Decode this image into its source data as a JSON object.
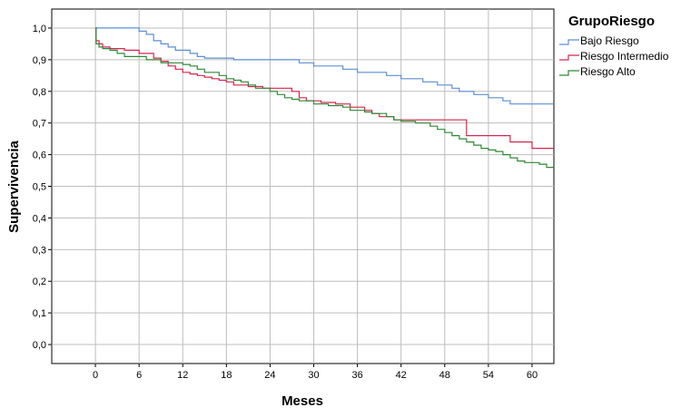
{
  "chart_data": {
    "type": "line",
    "xlabel": "Meses",
    "ylabel": "Supervivencia",
    "xlim": [
      -6,
      63
    ],
    "ylim": [
      -0.06,
      1.06
    ],
    "x_ticks": [
      0,
      6,
      12,
      18,
      24,
      30,
      36,
      42,
      48,
      54,
      60
    ],
    "x_tick_labels": [
      "0",
      "6",
      "12",
      "18",
      "24",
      "30",
      "36",
      "42",
      "48",
      "54",
      "60"
    ],
    "y_ticks": [
      0,
      0.1,
      0.2,
      0.3,
      0.4,
      0.5,
      0.6,
      0.7,
      0.8,
      0.9,
      1.0
    ],
    "y_tick_labels": [
      "0,0",
      "0,1",
      "0,2",
      "0,3",
      "0,4",
      "0,5",
      "0,6",
      "0,7",
      "0,8",
      "0,9",
      "1,0"
    ],
    "grid": true,
    "step": true,
    "legend": {
      "title": "GrupoRiesgo",
      "position": "top-right"
    },
    "series": [
      {
        "name": "Bajo Riesgo",
        "color": "#5b8fd6",
        "points": [
          [
            0,
            1.0
          ],
          [
            6,
            0.99
          ],
          [
            7,
            0.98
          ],
          [
            8,
            0.96
          ],
          [
            9,
            0.95
          ],
          [
            10,
            0.94
          ],
          [
            11,
            0.93
          ],
          [
            13,
            0.92
          ],
          [
            14,
            0.91
          ],
          [
            15,
            0.905
          ],
          [
            19,
            0.9
          ],
          [
            28,
            0.89
          ],
          [
            30,
            0.88
          ],
          [
            34,
            0.87
          ],
          [
            36,
            0.86
          ],
          [
            40,
            0.85
          ],
          [
            42,
            0.84
          ],
          [
            45,
            0.83
          ],
          [
            47,
            0.82
          ],
          [
            49,
            0.81
          ],
          [
            50,
            0.8
          ],
          [
            52,
            0.79
          ],
          [
            54,
            0.78
          ],
          [
            56,
            0.77
          ],
          [
            57,
            0.76
          ],
          [
            63,
            0.76
          ]
        ]
      },
      {
        "name": "Riesgo Intermedio",
        "color": "#d6264f",
        "points": [
          [
            0,
            1.0
          ],
          [
            0.1,
            0.96
          ],
          [
            0.5,
            0.95
          ],
          [
            1,
            0.94
          ],
          [
            2,
            0.935
          ],
          [
            4,
            0.93
          ],
          [
            6,
            0.92
          ],
          [
            8,
            0.905
          ],
          [
            9,
            0.895
          ],
          [
            10,
            0.88
          ],
          [
            11,
            0.87
          ],
          [
            12,
            0.86
          ],
          [
            13,
            0.855
          ],
          [
            14,
            0.85
          ],
          [
            15,
            0.845
          ],
          [
            16,
            0.84
          ],
          [
            17,
            0.835
          ],
          [
            18,
            0.83
          ],
          [
            19,
            0.82
          ],
          [
            21,
            0.815
          ],
          [
            23,
            0.81
          ],
          [
            27,
            0.8
          ],
          [
            28,
            0.78
          ],
          [
            29,
            0.77
          ],
          [
            31,
            0.765
          ],
          [
            33,
            0.76
          ],
          [
            35,
            0.75
          ],
          [
            37,
            0.74
          ],
          [
            38,
            0.73
          ],
          [
            39,
            0.72
          ],
          [
            41,
            0.71
          ],
          [
            44,
            0.71
          ],
          [
            51,
            0.66
          ],
          [
            57,
            0.64
          ],
          [
            60,
            0.62
          ],
          [
            63,
            0.62
          ]
        ]
      },
      {
        "name": "Riesgo Alto",
        "color": "#2e8a35",
        "points": [
          [
            0,
            1.0
          ],
          [
            0.1,
            0.95
          ],
          [
            0.5,
            0.94
          ],
          [
            1,
            0.935
          ],
          [
            2,
            0.93
          ],
          [
            3,
            0.92
          ],
          [
            4,
            0.91
          ],
          [
            7,
            0.9
          ],
          [
            9,
            0.89
          ],
          [
            12,
            0.885
          ],
          [
            13,
            0.88
          ],
          [
            14,
            0.87
          ],
          [
            15,
            0.86
          ],
          [
            17,
            0.85
          ],
          [
            18,
            0.84
          ],
          [
            19,
            0.835
          ],
          [
            20,
            0.83
          ],
          [
            21,
            0.82
          ],
          [
            22,
            0.81
          ],
          [
            24,
            0.8
          ],
          [
            25,
            0.79
          ],
          [
            26,
            0.78
          ],
          [
            27,
            0.775
          ],
          [
            28,
            0.77
          ],
          [
            30,
            0.76
          ],
          [
            32,
            0.755
          ],
          [
            34,
            0.75
          ],
          [
            35,
            0.74
          ],
          [
            37,
            0.735
          ],
          [
            38,
            0.73
          ],
          [
            40,
            0.72
          ],
          [
            41,
            0.71
          ],
          [
            42,
            0.705
          ],
          [
            44,
            0.7
          ],
          [
            46,
            0.69
          ],
          [
            47,
            0.68
          ],
          [
            48,
            0.67
          ],
          [
            49,
            0.66
          ],
          [
            50,
            0.65
          ],
          [
            51,
            0.64
          ],
          [
            52,
            0.63
          ],
          [
            53,
            0.62
          ],
          [
            54,
            0.615
          ],
          [
            55,
            0.61
          ],
          [
            56,
            0.6
          ],
          [
            57,
            0.59
          ],
          [
            58,
            0.58
          ],
          [
            59,
            0.575
          ],
          [
            61,
            0.57
          ],
          [
            62,
            0.56
          ],
          [
            63,
            0.56
          ]
        ]
      }
    ]
  }
}
